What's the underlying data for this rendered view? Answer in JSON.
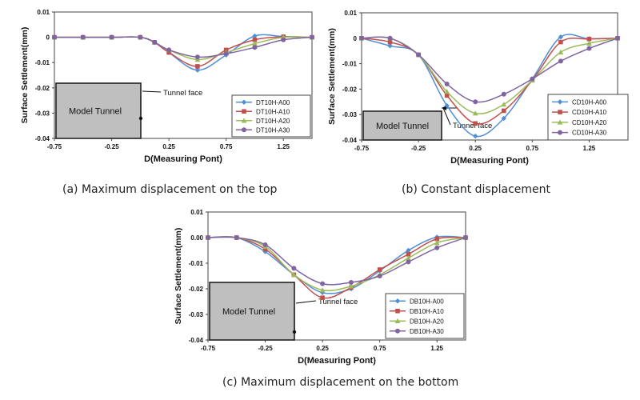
{
  "chart_data": [
    {
      "type": "line",
      "caption": "(a) Maximum displacement on the top",
      "xlabel": "D(Measuring Pont)",
      "ylabel": "Surface Settlement(mm)",
      "xlim": [
        -0.75,
        1.5
      ],
      "ylim": [
        -0.04,
        0.01
      ],
      "xticks": [
        "-0.75",
        "-0.25",
        "0.25",
        "0.75",
        "1.25"
      ],
      "yticks": [
        "0.01",
        "0",
        "-0.01",
        "-0.02",
        "-0.03",
        "-0.04"
      ],
      "ytick_values": [
        0.01,
        0,
        -0.01,
        -0.02,
        -0.03,
        -0.04
      ],
      "model_label": "Model Tunnel",
      "face_label": "Tunnel face",
      "legend_position": "bottom-right",
      "x": [
        -0.75,
        -0.5,
        -0.25,
        0,
        0.125,
        0.25,
        0.5,
        0.75,
        1.0,
        1.25,
        1.5
      ],
      "series": [
        {
          "name": "DT10H-A00",
          "color": "#4F8FD6",
          "marker": "diamond",
          "values": [
            0,
            0,
            0,
            0,
            -0.002,
            -0.006,
            -0.013,
            -0.007,
            0.0005,
            0.0003,
            0
          ]
        },
        {
          "name": "DT10H-A10",
          "color": "#C0504D",
          "marker": "square",
          "values": [
            0,
            0,
            0,
            0,
            -0.002,
            -0.006,
            -0.0115,
            -0.005,
            -0.001,
            0.0002,
            0
          ]
        },
        {
          "name": "DT10H-A20",
          "color": "#9BBB59",
          "marker": "triangle",
          "values": [
            0,
            0,
            0,
            0,
            -0.002,
            -0.005,
            -0.0088,
            -0.006,
            -0.0025,
            0,
            0
          ]
        },
        {
          "name": "DT10H-A30",
          "color": "#8064A2",
          "marker": "circle",
          "values": [
            0,
            0,
            0,
            0,
            -0.002,
            -0.005,
            -0.0078,
            -0.0065,
            -0.004,
            -0.001,
            0
          ]
        }
      ]
    },
    {
      "type": "line",
      "caption": "(b) Constant displacement",
      "xlabel": "D(Measuring Pont)",
      "ylabel": "Surface Settlement(mm)",
      "xlim": [
        -0.75,
        1.5
      ],
      "ylim": [
        -0.04,
        0.01
      ],
      "xticks": [
        "-0.75",
        "-0.25",
        "0.25",
        "0.75",
        "1.25"
      ],
      "yticks": [
        "0.01",
        "0",
        "-0.01",
        "-0.02",
        "-0.03",
        "-0.04"
      ],
      "ytick_values": [
        0.01,
        0,
        -0.01,
        -0.02,
        -0.03,
        -0.04
      ],
      "model_label": "Model Tunnel",
      "face_label": "Tunnel face",
      "legend_position": "bottom-right",
      "x": [
        -0.75,
        -0.5,
        -0.25,
        0,
        0.25,
        0.5,
        0.75,
        1.0,
        1.25,
        1.5
      ],
      "series": [
        {
          "name": "CD10H-A00",
          "color": "#4F8FD6",
          "marker": "diamond",
          "values": [
            0,
            -0.003,
            -0.0065,
            -0.0265,
            -0.0385,
            -0.0315,
            -0.016,
            0.0005,
            -0.0002,
            0
          ]
        },
        {
          "name": "CD10H-A10",
          "color": "#C0504D",
          "marker": "square",
          "values": [
            0,
            -0.0015,
            -0.0065,
            -0.0225,
            -0.0335,
            -0.0285,
            -0.0165,
            -0.0015,
            -0.0003,
            0
          ]
        },
        {
          "name": "CD10H-A20",
          "color": "#9BBB59",
          "marker": "triangle",
          "values": [
            0,
            0,
            -0.0065,
            -0.021,
            -0.0295,
            -0.026,
            -0.0165,
            -0.0055,
            -0.002,
            0
          ]
        },
        {
          "name": "CD10H-A30",
          "color": "#8064A2",
          "marker": "circle",
          "values": [
            0,
            0,
            -0.0065,
            -0.018,
            -0.025,
            -0.022,
            -0.016,
            -0.009,
            -0.004,
            0
          ]
        }
      ]
    },
    {
      "type": "line",
      "caption": "(c) Maximum displacement on the bottom",
      "xlabel": "D(Measuring Pont)",
      "ylabel": "Surface Settlement(mm)",
      "xlim": [
        -0.75,
        1.5
      ],
      "ylim": [
        -0.04,
        0.01
      ],
      "xticks": [
        "-0.75",
        "-0.25",
        "0.25",
        "0.75",
        "1.25"
      ],
      "yticks": [
        "0.01",
        "0.00",
        "-0.01",
        "-0.02",
        "-0.03",
        "-0.04"
      ],
      "ytick_values": [
        0.01,
        0,
        -0.01,
        -0.02,
        -0.03,
        -0.04
      ],
      "model_label": "Model Tunnel",
      "face_label": "Tunnel face",
      "legend_position": "bottom-right",
      "x": [
        -0.75,
        -0.5,
        -0.25,
        0,
        0.25,
        0.5,
        0.75,
        1.0,
        1.25,
        1.5
      ],
      "series": [
        {
          "name": "DB10H-A00",
          "color": "#4F8FD6",
          "marker": "diamond",
          "values": [
            0,
            0,
            -0.0055,
            -0.0145,
            -0.0215,
            -0.02,
            -0.013,
            -0.005,
            0.0002,
            0
          ]
        },
        {
          "name": "DB10H-A10",
          "color": "#C0504D",
          "marker": "square",
          "values": [
            0,
            0,
            -0.0045,
            -0.0145,
            -0.0235,
            -0.0195,
            -0.0125,
            -0.0065,
            -0.0005,
            0
          ]
        },
        {
          "name": "DB10H-A20",
          "color": "#9BBB59",
          "marker": "triangle",
          "values": [
            0,
            0,
            -0.0035,
            -0.0145,
            -0.0205,
            -0.019,
            -0.0145,
            -0.008,
            -0.002,
            0
          ]
        },
        {
          "name": "DB10H-A30",
          "color": "#8064A2",
          "marker": "circle",
          "values": [
            0,
            0,
            -0.0028,
            -0.012,
            -0.018,
            -0.0175,
            -0.015,
            -0.0095,
            -0.004,
            0
          ]
        }
      ]
    }
  ]
}
